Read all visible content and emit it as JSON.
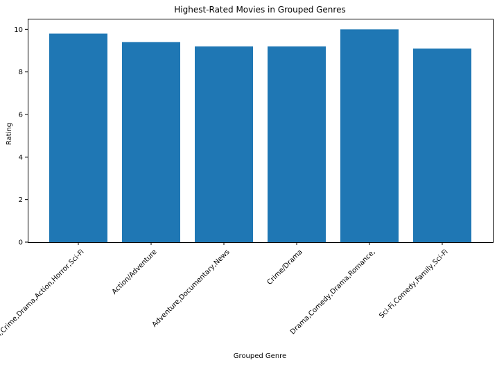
{
  "chart_data": {
    "type": "bar",
    "title": "Highest-Rated Movies in Grouped Genres",
    "xlabel": "Grouped Genre",
    "ylabel": "Rating",
    "categories": [
      "Action,Crime,Drama,Action,Horror,Sci-Fi",
      "Action/Adventure",
      "Adventure,Documentary,News",
      "Crime/Drama",
      "Drama,Comedy,Drama,Romance,",
      "Sci-Fi,Comedy,Family,Sci-Fi"
    ],
    "values": [
      9.8,
      9.4,
      9.2,
      9.2,
      10.0,
      9.1
    ],
    "ylim": [
      0,
      10.5
    ],
    "yticks": [
      0,
      2,
      4,
      6,
      8,
      10
    ],
    "grid": false,
    "bar_color": "#1f77b4"
  }
}
